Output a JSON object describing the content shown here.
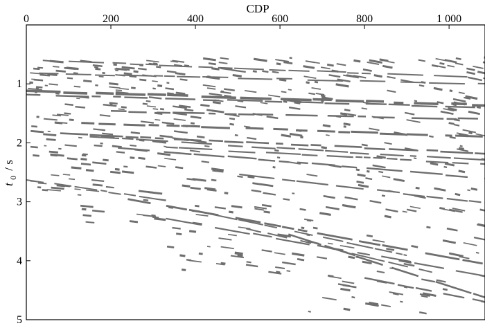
{
  "chart_data": {
    "type": "scatter",
    "title": "",
    "xlabel": "CDP",
    "ylabel_main": "t",
    "ylabel_sub": "0",
    "ylabel_unit": "/ s",
    "xlim": [
      0,
      1085
    ],
    "ylim": [
      0,
      5
    ],
    "x_axis_position": "top",
    "y_inverted": true,
    "grid": false,
    "marker_color": "#6e6e6e",
    "xticks": [
      {
        "value": 0,
        "label": "0"
      },
      {
        "value": 200,
        "label": "200"
      },
      {
        "value": 400,
        "label": "400"
      },
      {
        "value": 600,
        "label": "600"
      },
      {
        "value": 800,
        "label": "800"
      },
      {
        "value": 1000,
        "label": "1 000"
      }
    ],
    "yticks": [
      {
        "value": 1,
        "label": "1"
      },
      {
        "value": 2,
        "label": "2"
      },
      {
        "value": 3,
        "label": "3"
      },
      {
        "value": 4,
        "label": "4"
      },
      {
        "value": 5,
        "label": "5"
      }
    ],
    "events": [
      {
        "x": [
          0,
          1085
        ],
        "t": [
          1.12,
          1.36
        ],
        "w": 3.6
      },
      {
        "x": [
          0,
          1085
        ],
        "t": [
          1.18,
          1.4
        ],
        "w": 2.4
      },
      {
        "x": [
          200,
          1085
        ],
        "t": [
          1.46,
          1.6
        ],
        "w": 2.5
      },
      {
        "x": [
          130,
          1085
        ],
        "t": [
          1.66,
          1.9
        ],
        "w": 3.0
      },
      {
        "x": [
          80,
          1085
        ],
        "t": [
          1.84,
          2.18
        ],
        "w": 2.6
      },
      {
        "x": [
          150,
          1085
        ],
        "t": [
          1.9,
          2.3
        ],
        "w": 2.2
      },
      {
        "x": [
          330,
          1085
        ],
        "t": [
          2.08,
          2.36
        ],
        "w": 2.2
      },
      {
        "x": [
          160,
          1085
        ],
        "t": [
          2.05,
          2.6
        ],
        "w": 2.4
      },
      {
        "x": [
          440,
          1085
        ],
        "t": [
          2.48,
          3.02
        ],
        "w": 2.2
      },
      {
        "x": [
          0,
          330
        ],
        "t": [
          2.62,
          2.98
        ],
        "w": 2.0
      },
      {
        "x": [
          240,
          1085
        ],
        "t": [
          2.95,
          4.05
        ],
        "w": 2.8
      },
      {
        "x": [
          330,
          1085
        ],
        "t": [
          3.28,
          4.25
        ],
        "w": 2.2
      },
      {
        "x": [
          420,
          900
        ],
        "t": [
          3.18,
          3.9
        ],
        "w": 2.0
      },
      {
        "x": [
          520,
          960
        ],
        "t": [
          3.45,
          4.2
        ],
        "w": 2.0
      },
      {
        "x": [
          620,
          1085
        ],
        "t": [
          3.55,
          4.62
        ],
        "w": 2.6
      },
      {
        "x": [
          800,
          1085
        ],
        "t": [
          4.3,
          4.7
        ],
        "w": 2.4
      },
      {
        "x": [
          30,
          1085
        ],
        "t": [
          0.82,
          1.0
        ],
        "w": 2.0
      },
      {
        "x": [
          100,
          1085
        ],
        "t": [
          0.62,
          0.9
        ],
        "w": 2.0
      }
    ]
  }
}
